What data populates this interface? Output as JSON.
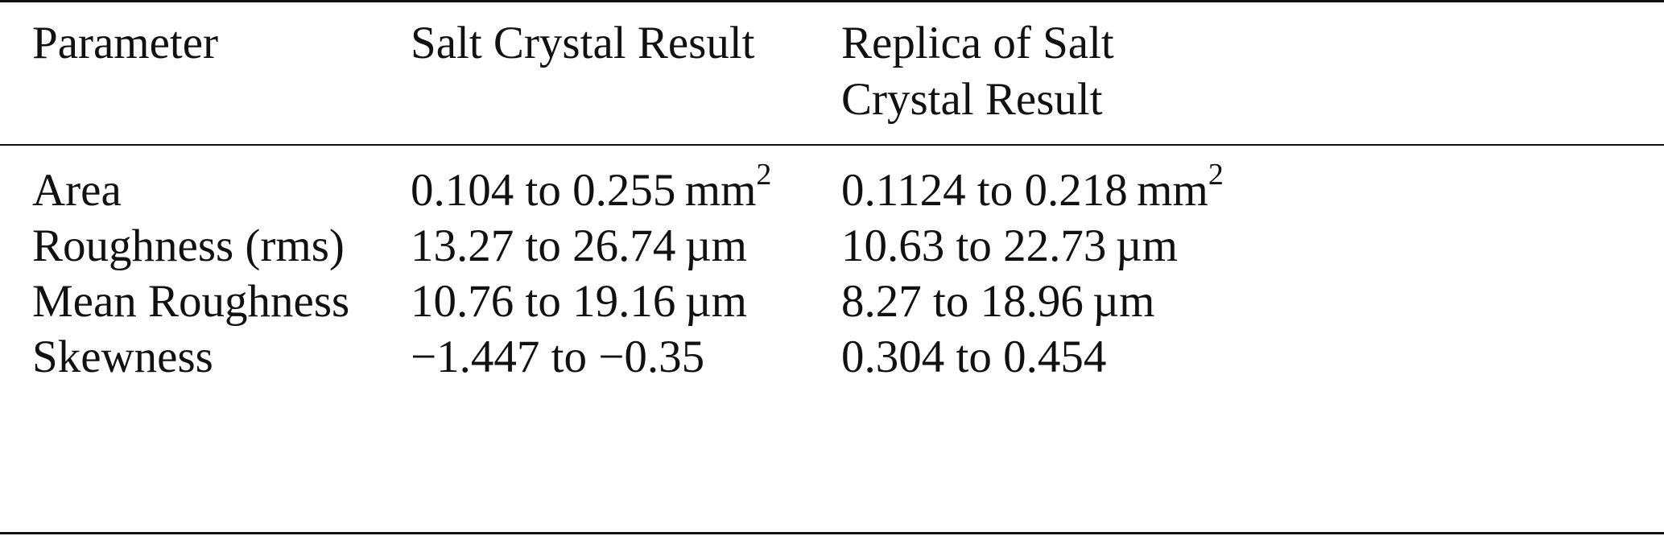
{
  "table": {
    "headers": [
      {
        "lines": [
          "Parameter"
        ]
      },
      {
        "lines": [
          "Salt Crystal Result"
        ]
      },
      {
        "lines": [
          "Replica of Salt",
          "Crystal Result"
        ]
      }
    ],
    "rows": [
      [
        {
          "text": "Area",
          "sup": ""
        },
        {
          "text": "0.104 to 0.255 mm",
          "sup": "2"
        },
        {
          "text": "0.1124 to 0.218 mm",
          "sup": "2"
        }
      ],
      [
        {
          "text": "Roughness (rms)",
          "sup": ""
        },
        {
          "text": "13.27 to 26.74 µm",
          "sup": ""
        },
        {
          "text": "10.63 to 22.73 µm",
          "sup": ""
        }
      ],
      [
        {
          "text": "Mean Roughness",
          "sup": ""
        },
        {
          "text": "10.76 to 19.16 µm",
          "sup": ""
        },
        {
          "text": "8.27 to 18.96 µm",
          "sup": ""
        }
      ],
      [
        {
          "text": "Skewness",
          "sup": ""
        },
        {
          "text": "−1.447 to −0.35",
          "sup": ""
        },
        {
          "text": "0.304 to 0.454",
          "sup": ""
        }
      ]
    ]
  }
}
